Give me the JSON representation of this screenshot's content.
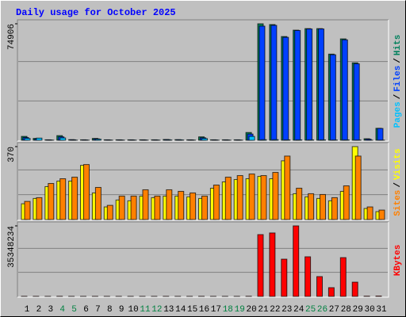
{
  "title": "Daily usage for October 2025",
  "legend_separator": "/",
  "chart_data": [
    {
      "type": "bar",
      "ylim": [
        0,
        74906
      ],
      "yticks": [
        74906
      ],
      "series": [
        {
          "name": "Hits",
          "color": "#00805c",
          "values": [
            2500,
            1200,
            300,
            3000,
            400,
            300,
            1200,
            300,
            300,
            300,
            300,
            300,
            500,
            400,
            300,
            2200,
            300,
            300,
            300,
            5000,
            74906,
            74400,
            66700,
            70800,
            71800,
            71800,
            55400,
            65200,
            49800,
            1000,
            7700
          ]
        },
        {
          "name": "Files",
          "color": "#0040ff",
          "values": [
            1800,
            900,
            200,
            2200,
            300,
            200,
            900,
            200,
            200,
            200,
            200,
            200,
            400,
            300,
            200,
            1600,
            200,
            200,
            200,
            4000,
            73400,
            73900,
            66200,
            70600,
            71600,
            71600,
            55000,
            64600,
            49200,
            700,
            7600
          ]
        },
        {
          "name": "Pages",
          "color": "#00c0ff",
          "values": [
            1200,
            1400,
            100,
            1500,
            100,
            100,
            700,
            100,
            100,
            100,
            100,
            100,
            200,
            200,
            100,
            1100,
            100,
            100,
            100,
            2500,
            400,
            400,
            300,
            300,
            300,
            300,
            200,
            300,
            200,
            100,
            100
          ]
        }
      ]
    },
    {
      "type": "bar",
      "ylim": [
        0,
        370
      ],
      "yticks": [
        370
      ],
      "series": [
        {
          "name": "Visits",
          "color": "#ffff00",
          "values": [
            80,
            107,
            167,
            195,
            195,
            275,
            135,
            64,
            99,
            95,
            119,
            111,
            119,
            119,
            115,
            107,
            159,
            191,
            203,
            207,
            219,
            207,
            298,
            131,
            115,
            107,
            95,
            143,
            370,
            56,
            40
          ]
        },
        {
          "name": "Sites",
          "color": "#ff8000",
          "values": [
            92,
            111,
            183,
            207,
            215,
            279,
            163,
            72,
            119,
            119,
            151,
            119,
            151,
            143,
            135,
            119,
            175,
            215,
            223,
            231,
            223,
            239,
            322,
            159,
            131,
            127,
            111,
            171,
            322,
            64,
            48
          ]
        }
      ]
    },
    {
      "type": "bar",
      "ylim": [
        0,
        35348234
      ],
      "yticks": [
        35348234
      ],
      "categories": [
        "1",
        "2",
        "3",
        "4",
        "5",
        "6",
        "7",
        "8",
        "9",
        "10",
        "11",
        "12",
        "13",
        "14",
        "15",
        "16",
        "17",
        "18",
        "19",
        "20",
        "21",
        "22",
        "23",
        "24",
        "25",
        "26",
        "27",
        "28",
        "29",
        "30",
        "31"
      ],
      "category_colors": [
        "#000000",
        "#000000",
        "#000000",
        "#008040",
        "#008040",
        "#000000",
        "#000000",
        "#000000",
        "#000000",
        "#000000",
        "#008040",
        "#008040",
        "#000000",
        "#000000",
        "#000000",
        "#000000",
        "#000000",
        "#008040",
        "#008040",
        "#000000",
        "#000000",
        "#000000",
        "#000000",
        "#000000",
        "#008040",
        "#008040",
        "#000000",
        "#000000",
        "#000000",
        "#000000",
        "#000000"
      ],
      "series": [
        {
          "name": "KBytes",
          "color": "#ff0000",
          "values": [
            60000,
            50000,
            40000,
            70000,
            40000,
            40000,
            50000,
            40000,
            40000,
            40000,
            40000,
            40000,
            50000,
            40000,
            40000,
            60000,
            40000,
            40000,
            40000,
            80000,
            30970000,
            31800000,
            18660000,
            35348234,
            19860000,
            9930000,
            4380000,
            19440000,
            7140000,
            120000,
            180000
          ]
        }
      ]
    }
  ]
}
